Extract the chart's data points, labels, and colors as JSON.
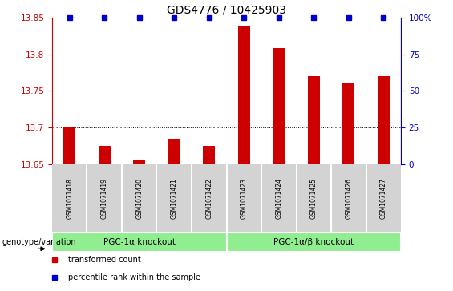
{
  "title": "GDS4776 / 10425903",
  "samples": [
    "GSM1071418",
    "GSM1071419",
    "GSM1071420",
    "GSM1071421",
    "GSM1071422",
    "GSM1071423",
    "GSM1071424",
    "GSM1071425",
    "GSM1071426",
    "GSM1071427"
  ],
  "transformed_counts": [
    13.7,
    13.675,
    13.657,
    13.685,
    13.675,
    13.838,
    13.808,
    13.77,
    13.76,
    13.77
  ],
  "percentile_ranks": [
    100,
    100,
    100,
    100,
    100,
    100,
    100,
    100,
    100,
    100
  ],
  "ylim_left": [
    13.65,
    13.85
  ],
  "ylim_right": [
    0,
    100
  ],
  "yticks_left": [
    13.65,
    13.7,
    13.75,
    13.8,
    13.85
  ],
  "yticks_right": [
    0,
    25,
    50,
    75,
    100
  ],
  "bar_color": "#cc0000",
  "dot_color": "#0000cc",
  "group1_label": "PGC-1α knockout",
  "group2_label": "PGC-1α/β knockout",
  "group1_indices": [
    0,
    1,
    2,
    3,
    4
  ],
  "group2_indices": [
    5,
    6,
    7,
    8,
    9
  ],
  "group_bg_color": "#90ee90",
  "sample_bg_color": "#d3d3d3",
  "legend_items": [
    {
      "color": "#cc0000",
      "label": "transformed count"
    },
    {
      "color": "#0000cc",
      "label": "percentile rank within the sample"
    }
  ],
  "genotype_label": "genotype/variation",
  "title_fontsize": 10,
  "tick_fontsize": 7.5,
  "sample_fontsize": 5.5,
  "group_fontsize": 7.5,
  "legend_fontsize": 7,
  "genotype_fontsize": 7
}
